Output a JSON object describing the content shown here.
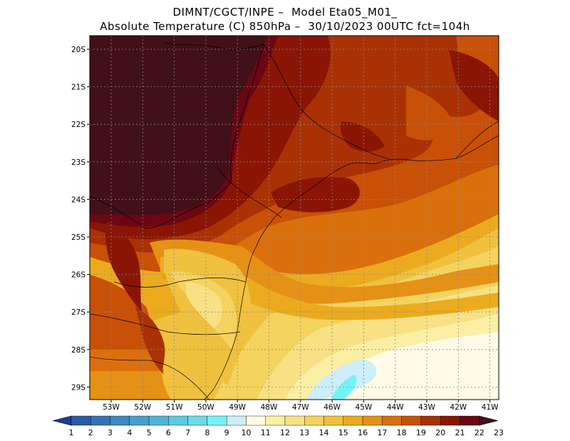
{
  "title_line1": "DIMNT/CGCT/INPE –  Model Eta05_M01_",
  "title_line2": "Absolute Temperature (C) 850hPa –  30/10/2023 00UTC fct=104h",
  "lat_ticks": [
    "20S",
    "21S",
    "22S",
    "23S",
    "24S",
    "25S",
    "26S",
    "27S",
    "28S",
    "29S"
  ],
  "lon_ticks": [
    "53W",
    "52W",
    "51W",
    "50W",
    "49W",
    "48W",
    "47W",
    "46W",
    "45W",
    "44W",
    "43W",
    "42W",
    "41W"
  ],
  "colorbar": {
    "labels": [
      "1",
      "2",
      "3",
      "4",
      "5",
      "6",
      "7",
      "8",
      "9",
      "10",
      "11",
      "12",
      "13",
      "14",
      "15",
      "16",
      "17",
      "18",
      "19",
      "20",
      "21",
      "22",
      "23"
    ],
    "colors": [
      "#1e3f8f",
      "#2a5aa3",
      "#3472b4",
      "#3d87c0",
      "#47a0cc",
      "#52b5d6",
      "#5ecbe0",
      "#6ddbe8",
      "#74f3f6",
      "#cdeefa",
      "#fffbe6",
      "#fbefa3",
      "#f8e184",
      "#f4d35f",
      "#f0c13e",
      "#ecab1e",
      "#e59115",
      "#da700c",
      "#c95007",
      "#a93104",
      "#8a1505",
      "#6b0614",
      "#401018"
    ]
  },
  "field_colors": {
    "t23": "#411018",
    "t22": "#6b0614",
    "t21": "#8a1505",
    "t20": "#a93104",
    "t19": "#c95007",
    "t18": "#da700c",
    "t17": "#e59115",
    "t16": "#ecab1e",
    "t15": "#f0c13e",
    "t14": "#f4d35f",
    "t13": "#f8e184",
    "t12": "#fbefa3",
    "t11": "#fffbe6",
    "t10": "#cdeefa",
    "t9": "#74f3f6"
  }
}
